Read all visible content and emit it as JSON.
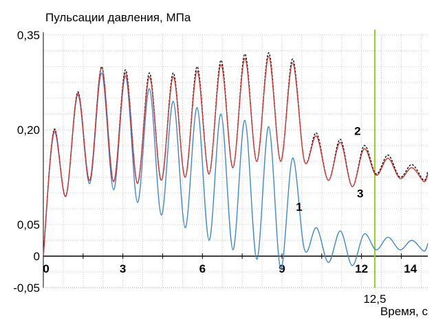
{
  "chart_data": {
    "type": "line",
    "title": "Пульсации давления, МПа",
    "xlabel": "Время, с",
    "ylabel": "",
    "xlim": [
      0,
      14.5
    ],
    "ylim": [
      -0.05,
      0.35
    ],
    "x_ticks": [
      "0",
      "3",
      "6",
      "9",
      "12",
      "14"
    ],
    "y_ticks": [
      "0,35",
      "0,20",
      "0,05",
      "0",
      "-0,05"
    ],
    "marker_line": {
      "x": 12.5,
      "label": "12,5",
      "color": "#8ed21c"
    },
    "grid": true,
    "series_label_style": "numbers-on-curves",
    "series": [
      {
        "name": "1",
        "color": "#3b87d4",
        "x": [
          0,
          0.4,
          0.85,
          1.3,
          1.75,
          2.2,
          2.65,
          3.1,
          3.55,
          4.0,
          4.45,
          4.9,
          5.35,
          5.8,
          6.25,
          6.7,
          7.15,
          7.6,
          8.05,
          8.5,
          8.95,
          9.4,
          9.85,
          10.3,
          10.75,
          11.2,
          11.65,
          12.1,
          12.55,
          13.0,
          13.45,
          13.9,
          14.35,
          14.5
        ],
        "values": [
          0,
          0.195,
          0.095,
          0.255,
          0.115,
          0.29,
          0.105,
          0.285,
          0.085,
          0.265,
          0.065,
          0.245,
          0.045,
          0.235,
          0.025,
          0.225,
          0.01,
          0.215,
          -0.005,
          0.205,
          -0.02,
          0.155,
          0.01,
          0.045,
          -0.01,
          0.04,
          -0.015,
          0.035,
          0.01,
          0.03,
          0.01,
          0.025,
          0.008,
          0.02
        ]
      },
      {
        "name": "2",
        "color": "#000000",
        "x": [
          0,
          0.4,
          0.85,
          1.3,
          1.75,
          2.2,
          2.65,
          3.1,
          3.55,
          4.0,
          4.45,
          4.9,
          5.35,
          5.8,
          6.25,
          6.7,
          7.15,
          7.6,
          8.05,
          8.5,
          8.95,
          9.4,
          9.85,
          10.3,
          10.75,
          11.2,
          11.65,
          12.1,
          12.55,
          13.0,
          13.45,
          13.9,
          14.35,
          14.5
        ],
        "values": [
          0,
          0.2,
          0.095,
          0.26,
          0.12,
          0.3,
          0.118,
          0.295,
          0.115,
          0.29,
          0.12,
          0.29,
          0.125,
          0.3,
          0.13,
          0.31,
          0.14,
          0.32,
          0.15,
          0.322,
          0.15,
          0.312,
          0.15,
          0.195,
          0.12,
          0.185,
          0.11,
          0.175,
          0.13,
          0.16,
          0.125,
          0.145,
          0.12,
          0.135
        ]
      },
      {
        "name": "3",
        "color": "#d9322f",
        "x": [
          0,
          0.4,
          0.85,
          1.3,
          1.75,
          2.2,
          2.65,
          3.1,
          3.55,
          4.0,
          4.45,
          4.9,
          5.35,
          5.8,
          6.25,
          6.7,
          7.15,
          7.6,
          8.05,
          8.5,
          8.95,
          9.4,
          9.85,
          10.3,
          10.75,
          11.2,
          11.65,
          12.1,
          12.55,
          13.0,
          13.45,
          13.9,
          14.35,
          14.5
        ],
        "values": [
          0,
          0.198,
          0.095,
          0.258,
          0.12,
          0.298,
          0.118,
          0.29,
          0.115,
          0.284,
          0.12,
          0.284,
          0.125,
          0.293,
          0.13,
          0.303,
          0.14,
          0.313,
          0.15,
          0.316,
          0.15,
          0.306,
          0.15,
          0.19,
          0.12,
          0.18,
          0.11,
          0.17,
          0.128,
          0.155,
          0.123,
          0.14,
          0.118,
          0.13
        ]
      }
    ]
  }
}
